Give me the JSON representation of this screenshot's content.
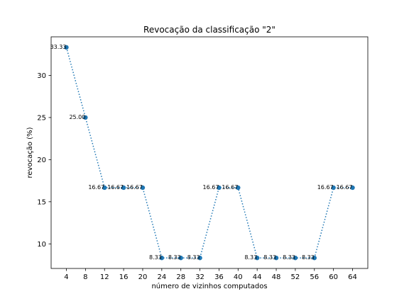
{
  "chart_data": {
    "type": "line",
    "title": "Revocação da classificação \"2\"",
    "xlabel": "número de vizinhos computados",
    "ylabel": "revocação (%)",
    "x": [
      4,
      8,
      12,
      16,
      20,
      24,
      28,
      32,
      36,
      40,
      44,
      48,
      52,
      56,
      60,
      64
    ],
    "xticks": [
      "4",
      "8",
      "12",
      "16",
      "20",
      "24",
      "28",
      "32",
      "36",
      "40",
      "44",
      "48",
      "52",
      "56",
      "60",
      "64"
    ],
    "yticks": [
      10,
      15,
      20,
      25,
      30
    ],
    "ytick_labels": [
      "10",
      "15",
      "20",
      "25",
      "30"
    ],
    "xlim": [
      0.8,
      67.2
    ],
    "ylim": [
      7.08,
      34.58
    ],
    "series": [
      {
        "values": [
          33.33,
          25.0,
          16.67,
          16.67,
          16.67,
          8.33,
          8.33,
          8.33,
          16.67,
          16.67,
          8.33,
          8.33,
          8.33,
          8.33,
          16.67,
          16.67
        ],
        "labels": [
          "33.33",
          "25.00",
          "16.67",
          "16.67",
          "16.67",
          "8.33",
          "8.33",
          "8.33",
          "16.67",
          "16.67",
          "8.33",
          "8.33",
          "8.33",
          "8.33",
          "16.67",
          "16.67"
        ],
        "color": "#1f77b4",
        "line_style": "dotted",
        "marker": "circle"
      }
    ],
    "grid": false,
    "legend": false
  }
}
